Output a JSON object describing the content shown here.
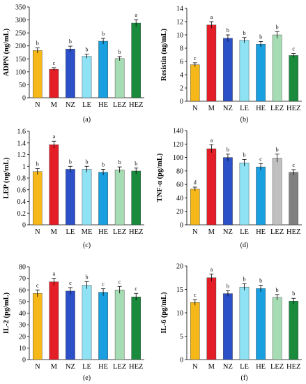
{
  "chart_data": [
    {
      "type": "bar",
      "panel_label": "(a)",
      "ylabel": "ADPN (ng/mL)",
      "categories": [
        "N",
        "M",
        "NZ",
        "LE",
        "HE",
        "LEZ",
        "HEZ"
      ],
      "values": [
        182,
        110,
        188,
        160,
        218,
        151,
        288
      ],
      "errors": [
        10,
        6,
        11,
        8,
        11,
        8,
        13
      ],
      "letters": [
        "b",
        "c",
        "b",
        "b",
        "b",
        "b",
        "a"
      ],
      "colors": [
        "#f5b818",
        "#e41e26",
        "#2c50c8",
        "#8ee2f4",
        "#1aa0e0",
        "#a6dcb4",
        "#1a8a3c"
      ],
      "ylim": [
        0,
        350
      ],
      "yticks": [
        0,
        50,
        100,
        150,
        200,
        250,
        300,
        350
      ]
    },
    {
      "type": "bar",
      "panel_label": "(b)",
      "ylabel": "Resistin (ng/mL)",
      "categories": [
        "N",
        "M",
        "NZ",
        "LE",
        "HE",
        "LEZ",
        "HEZ"
      ],
      "values": [
        5.5,
        11.5,
        9.5,
        9.2,
        8.6,
        10.0,
        6.9
      ],
      "errors": [
        0.3,
        0.5,
        0.5,
        0.4,
        0.4,
        0.5,
        0.3
      ],
      "letters": [
        "c",
        "a",
        "b",
        "b",
        "b",
        "b",
        "c"
      ],
      "colors": [
        "#f5b818",
        "#e41e26",
        "#2c50c8",
        "#8ee2f4",
        "#1aa0e0",
        "#a6dcb4",
        "#1a8a3c"
      ],
      "ylim": [
        0,
        14
      ],
      "yticks": [
        0,
        2,
        4,
        6,
        8,
        10,
        12,
        14
      ]
    },
    {
      "type": "bar",
      "panel_label": "(c)",
      "ylabel": "LEP (ng/mL)",
      "categories": [
        "N",
        "M",
        "LE",
        "ME",
        "HE",
        "LEZ",
        "HEZ"
      ],
      "values": [
        0.91,
        1.37,
        0.95,
        0.95,
        0.9,
        0.94,
        0.92
      ],
      "errors": [
        0.05,
        0.06,
        0.05,
        0.05,
        0.05,
        0.05,
        0.05
      ],
      "letters": [
        "b",
        "a",
        "b",
        "b",
        "b",
        "b",
        "b"
      ],
      "colors": [
        "#f5b818",
        "#e41e26",
        "#2c50c8",
        "#8ee2f4",
        "#1aa0e0",
        "#a6dcb4",
        "#1a8a3c"
      ],
      "ylim": [
        0,
        1.6
      ],
      "yticks": [
        0,
        0.2,
        0.4,
        0.6,
        0.8,
        1,
        1.2,
        1.4,
        1.6
      ]
    },
    {
      "type": "bar",
      "panel_label": "(d)",
      "ylabel": "TNF-α (pg/mL)",
      "categories": [
        "N",
        "M",
        "NZ",
        "LE",
        "HE",
        "LEZ",
        "HEZ"
      ],
      "values": [
        53,
        113,
        100,
        92,
        86,
        99,
        78
      ],
      "errors": [
        3,
        6,
        5,
        5,
        5,
        6,
        4
      ],
      "letters": [
        "d",
        "a",
        "b",
        "b",
        "c",
        "b",
        "c"
      ],
      "colors": [
        "#f5b818",
        "#e41e26",
        "#2c50c8",
        "#8ee2f4",
        "#1aa0e0",
        "#c0c0c0",
        "#808080"
      ],
      "ylim": [
        0,
        140
      ],
      "yticks": [
        0,
        20,
        40,
        60,
        80,
        100,
        120,
        140
      ]
    },
    {
      "type": "bar",
      "panel_label": "(e)",
      "ylabel": "IL-2 (pg/mL)",
      "categories": [
        "N",
        "M",
        "NZ",
        "LE",
        "HE",
        "LEZ",
        "HEZ"
      ],
      "values": [
        57,
        67,
        59,
        64,
        58,
        60,
        54
      ],
      "errors": [
        3,
        3,
        3,
        3,
        3,
        3,
        3
      ],
      "letters": [
        "c",
        "a",
        "c",
        "b",
        "c",
        "c",
        "c"
      ],
      "colors": [
        "#f5b818",
        "#e41e26",
        "#2c50c8",
        "#8ee2f4",
        "#1aa0e0",
        "#a6dcb4",
        "#1a8a3c"
      ],
      "ylim": [
        0,
        80
      ],
      "yticks": [
        0,
        10,
        20,
        30,
        40,
        50,
        60,
        70,
        80
      ]
    },
    {
      "type": "bar",
      "panel_label": "(f)",
      "ylabel": "IL-6 (pg/mL)",
      "categories": [
        "N",
        "M",
        "NZ",
        "LE",
        "HE",
        "LEZ",
        "HEZ"
      ],
      "values": [
        12.2,
        17.5,
        14.1,
        15.5,
        15.2,
        13.3,
        12.5
      ],
      "errors": [
        0.6,
        0.8,
        0.6,
        0.7,
        0.7,
        0.6,
        0.6
      ],
      "letters": [
        "c",
        "a",
        "b",
        "b",
        "b",
        "b",
        "b"
      ],
      "colors": [
        "#f5b818",
        "#e41e26",
        "#2c50c8",
        "#8ee2f4",
        "#1aa0e0",
        "#a6dcb4",
        "#1a8a3c"
      ],
      "ylim": [
        0,
        20
      ],
      "yticks": [
        0,
        5,
        10,
        15,
        20
      ]
    }
  ]
}
